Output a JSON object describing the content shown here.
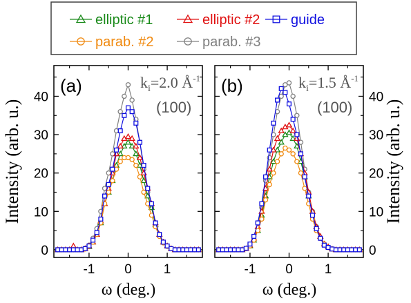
{
  "chart_data": [
    {
      "type": "line",
      "panel_label": "(a)",
      "annotation_k": "k",
      "annotation_k_sub": "i",
      "annotation_k_eq": "=2.0 Å",
      "annotation_k_sup": "-1",
      "annotation_reflection": "(100)",
      "xlabel": "ω (deg.)",
      "ylabel": "Intensity (arb. u.)",
      "xlim": [
        -1.9,
        1.9
      ],
      "ylim": [
        -2,
        48
      ],
      "xticks": [
        "-1",
        "0",
        "1"
      ],
      "yticks": [
        "0",
        "10",
        "20",
        "30",
        "40"
      ],
      "x": [
        -1.8,
        -1.7,
        -1.6,
        -1.5,
        -1.4,
        -1.3,
        -1.2,
        -1.1,
        -1.0,
        -0.9,
        -0.8,
        -0.7,
        -0.6,
        -0.5,
        -0.4,
        -0.3,
        -0.2,
        -0.1,
        0.0,
        0.1,
        0.2,
        0.3,
        0.4,
        0.5,
        0.6,
        0.7,
        0.8,
        0.9,
        1.0,
        1.1,
        1.2,
        1.3,
        1.4,
        1.5,
        1.6,
        1.7,
        1.8
      ],
      "series": [
        {
          "name": "elliptic #1",
          "values": [
            0,
            0,
            0,
            0,
            0,
            0,
            0,
            0.3,
            0.8,
            2,
            4,
            7,
            12,
            15,
            18,
            22,
            25,
            27,
            28,
            27,
            25,
            22,
            18,
            14,
            11,
            6.5,
            4,
            2,
            1,
            0.3,
            0,
            0,
            0,
            0,
            0,
            0,
            0
          ]
        },
        {
          "name": "elliptic #2",
          "values": [
            0,
            0,
            0,
            0,
            1,
            0,
            0,
            0.3,
            1,
            2,
            4,
            7.5,
            12,
            16,
            20,
            25,
            27,
            29,
            29.5,
            29,
            27,
            24,
            20,
            16,
            12,
            7,
            4,
            2,
            1,
            0.3,
            0,
            0,
            0,
            0,
            0,
            0,
            0
          ]
        },
        {
          "name": "guide",
          "values": [
            0,
            0,
            0,
            0,
            0,
            0,
            0,
            0.3,
            1,
            2.5,
            4.5,
            8,
            14,
            17,
            21,
            26,
            31,
            35,
            37,
            36,
            33,
            28,
            22,
            16,
            12,
            7,
            4,
            2,
            1,
            0.3,
            0,
            0,
            0,
            0,
            0,
            0,
            0
          ]
        },
        {
          "name": "parab. #2",
          "values": [
            0,
            0,
            0,
            0,
            0,
            0,
            0,
            0.2,
            0.8,
            2,
            4,
            7,
            12,
            15,
            18,
            21,
            23,
            24,
            24,
            23.5,
            22,
            19,
            15,
            12,
            9,
            6,
            3.5,
            1.8,
            0.9,
            0.3,
            0,
            0,
            0,
            0,
            0,
            0,
            0
          ]
        },
        {
          "name": "parab. #3",
          "values": [
            0,
            0,
            0,
            0,
            0,
            0,
            0,
            0.4,
            1.2,
            3,
            5.5,
            10,
            16,
            20,
            25,
            31,
            36,
            40,
            43,
            39,
            34,
            28,
            21,
            15,
            11,
            6.5,
            4,
            2,
            1,
            0.3,
            0,
            0,
            0,
            0,
            0,
            0,
            0
          ]
        }
      ]
    },
    {
      "type": "line",
      "panel_label": "(b)",
      "annotation_k": "k",
      "annotation_k_sub": "i",
      "annotation_k_eq": "=1.5 Å",
      "annotation_k_sup": "-1",
      "annotation_reflection": "(100)",
      "xlabel": "ω (deg.)",
      "ylabel": "Intensity (arb. u.)",
      "xlim": [
        -1.9,
        1.9
      ],
      "ylim": [
        -2,
        48
      ],
      "xticks": [
        "-1",
        "0",
        "1"
      ],
      "yticks": [
        "0",
        "10",
        "20",
        "30",
        "40"
      ],
      "x": [
        -1.8,
        -1.7,
        -1.6,
        -1.5,
        -1.4,
        -1.3,
        -1.2,
        -1.1,
        -1.0,
        -0.9,
        -0.8,
        -0.7,
        -0.6,
        -0.5,
        -0.4,
        -0.3,
        -0.2,
        -0.1,
        0.0,
        0.1,
        0.2,
        0.3,
        0.4,
        0.5,
        0.6,
        0.7,
        0.8,
        0.9,
        1.0,
        1.1,
        1.2,
        1.3,
        1.4,
        1.5,
        1.6,
        1.7,
        1.8
      ],
      "series": [
        {
          "name": "elliptic #1",
          "values": [
            0,
            0,
            0,
            0,
            0,
            0,
            0,
            0.3,
            1,
            2.5,
            5,
            9,
            14,
            19,
            23,
            26,
            28,
            30,
            30.5,
            29,
            27,
            23,
            19,
            14,
            10,
            6,
            3.5,
            1.5,
            0.8,
            0.2,
            0,
            0,
            0,
            0,
            0,
            0,
            0
          ]
        },
        {
          "name": "elliptic #2",
          "values": [
            0,
            0,
            0,
            0,
            0,
            0,
            0,
            0.3,
            1.2,
            3,
            6,
            10,
            16,
            21,
            26,
            29,
            31,
            32,
            32.5,
            31,
            29,
            25,
            20,
            15,
            10,
            6,
            3.5,
            1.5,
            0.8,
            0.2,
            0,
            0,
            0,
            0,
            0,
            0,
            0
          ]
        },
        {
          "name": "guide",
          "values": [
            0,
            0,
            0,
            0,
            0,
            0,
            0,
            0.4,
            1.5,
            3.5,
            7,
            12,
            19,
            26,
            33,
            39,
            42,
            41,
            38,
            34,
            30,
            25,
            19,
            14,
            9,
            5.5,
            3,
            1.2,
            0.6,
            0.2,
            0,
            0,
            0,
            0,
            0,
            0,
            0
          ]
        },
        {
          "name": "parab. #2",
          "values": [
            0,
            0,
            0,
            0,
            0,
            0,
            0,
            0.3,
            1,
            2.5,
            5,
            8,
            13,
            17,
            20,
            23,
            25,
            26.5,
            26,
            25,
            23,
            20,
            16,
            12,
            8,
            5,
            3,
            1.5,
            0.6,
            0.2,
            0,
            0,
            0,
            0,
            0,
            0,
            0
          ]
        },
        {
          "name": "parab. #3",
          "values": [
            0,
            0,
            0,
            0,
            0,
            0,
            0,
            0.4,
            1.5,
            3.5,
            7,
            11,
            18,
            24,
            30,
            36,
            40,
            43,
            43.5,
            40,
            35,
            28,
            21,
            15,
            10,
            6,
            3,
            1.5,
            0.6,
            0.2,
            0,
            0,
            0,
            0,
            0,
            0,
            0
          ]
        }
      ]
    }
  ],
  "legend": [
    {
      "name": "elliptic #1",
      "color": "#1a8a1a",
      "marker": "triangle"
    },
    {
      "name": "elliptic #2",
      "color": "#e01010",
      "marker": "triangle"
    },
    {
      "name": "guide",
      "color": "#1010e0",
      "marker": "square"
    },
    {
      "name": "parab. #2",
      "color": "#f08a10",
      "marker": "circle"
    },
    {
      "name": "parab. #3",
      "color": "#808080",
      "marker": "circle"
    }
  ]
}
